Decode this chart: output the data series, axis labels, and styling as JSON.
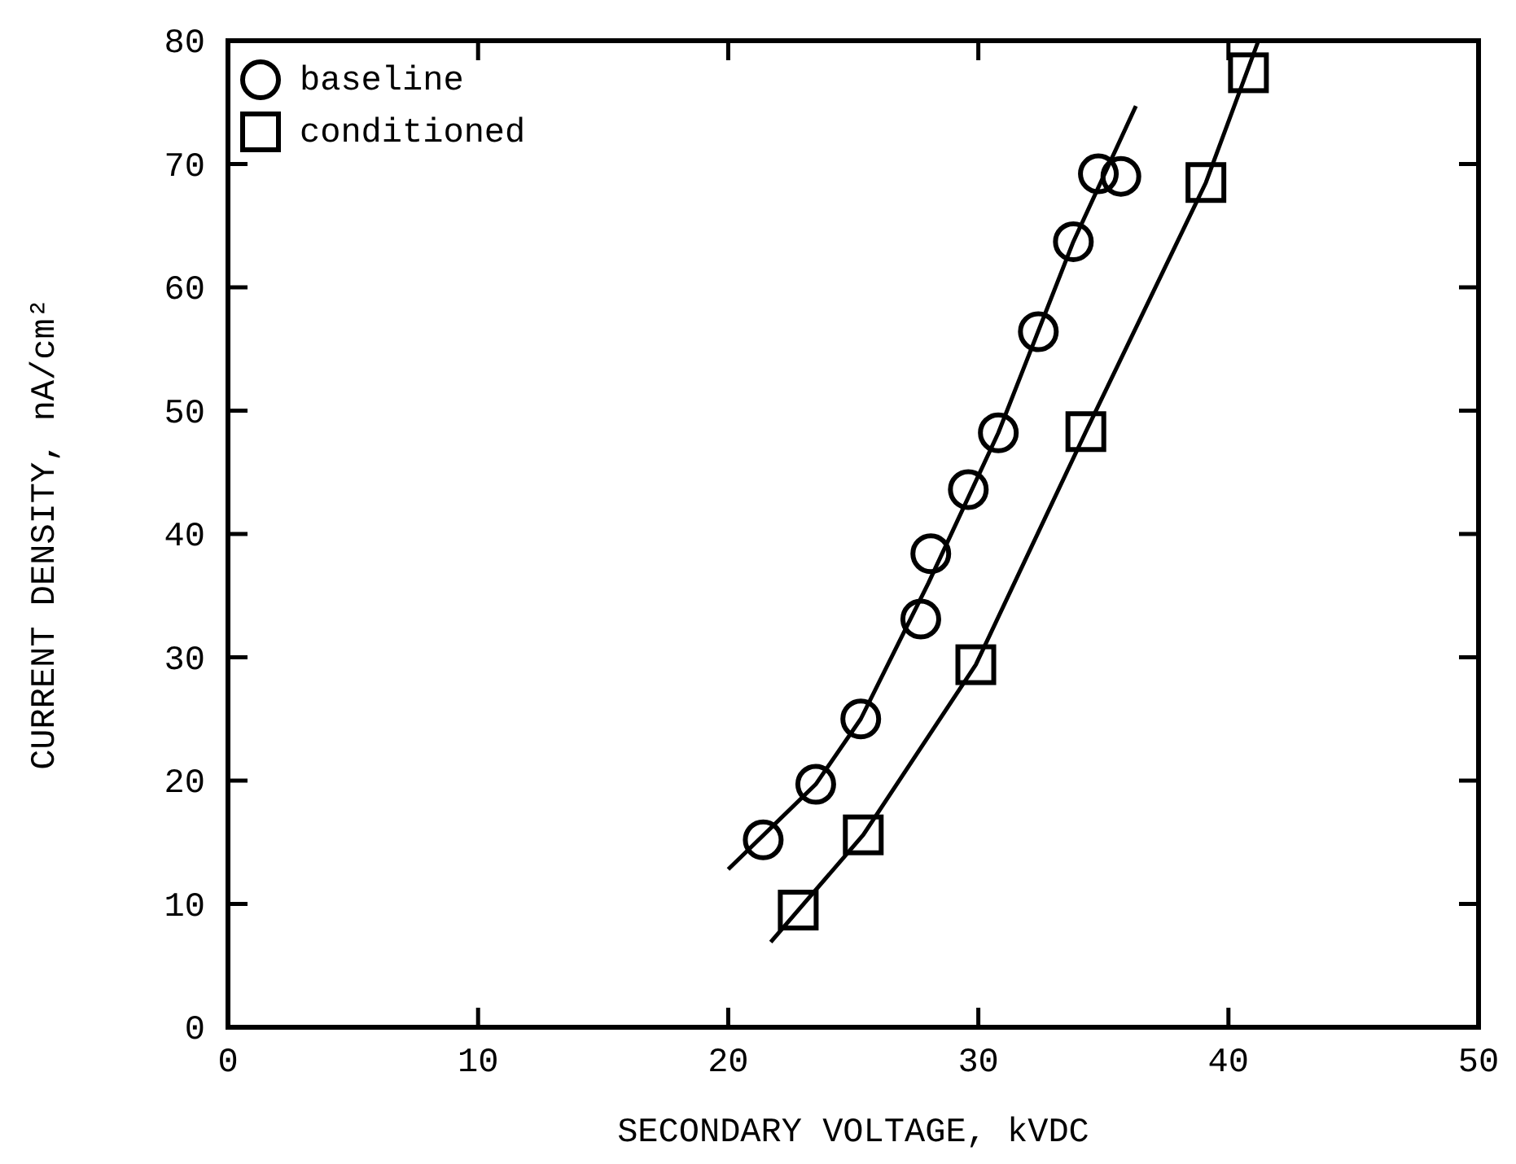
{
  "chart_data": {
    "type": "scatter",
    "xlabel": "SECONDARY VOLTAGE, kVDC",
    "ylabel": "CURRENT DENSITY, nA/cm²",
    "xlim": [
      0,
      50
    ],
    "ylim": [
      0,
      80
    ],
    "xticks": [
      0,
      10,
      20,
      30,
      40,
      50
    ],
    "yticks": [
      0,
      10,
      20,
      30,
      40,
      50,
      60,
      70,
      80
    ],
    "grid": false,
    "legend": "top left",
    "series": [
      {
        "name": "baseline",
        "marker": "circle",
        "color": "#000000",
        "type": "scatter",
        "x": [
          21.4,
          23.5,
          25.3,
          27.7,
          28.1,
          29.6,
          30.8,
          32.4,
          33.8,
          34.8,
          35.7
        ],
        "values": [
          15.2,
          19.7,
          25.0,
          33.1,
          38.4,
          43.6,
          48.2,
          56.4,
          63.7,
          69.2,
          69.0
        ]
      },
      {
        "name": "conditioned",
        "marker": "square",
        "color": "#000000",
        "x": [
          22.8,
          25.4,
          29.9,
          34.3,
          39.1,
          40.8
        ],
        "values": [
          9.5,
          15.6,
          29.4,
          48.3,
          68.5,
          77.4
        ]
      },
      {
        "type": "line",
        "marker": "none",
        "color": "#000000",
        "x": [
          20.0,
          23.5,
          25.3,
          28.0,
          30.8,
          33.8,
          36.3
        ],
        "values": [
          12.8,
          19.7,
          25.0,
          36.0,
          48.2,
          63.7,
          74.7
        ]
      },
      {
        "type": "line",
        "marker": "none",
        "color": "#000000",
        "x": [
          21.7,
          25.4,
          29.9,
          34.3,
          39.1,
          41.2
        ],
        "values": [
          6.9,
          15.6,
          29.4,
          48.3,
          68.5,
          80.0
        ]
      }
    ]
  }
}
